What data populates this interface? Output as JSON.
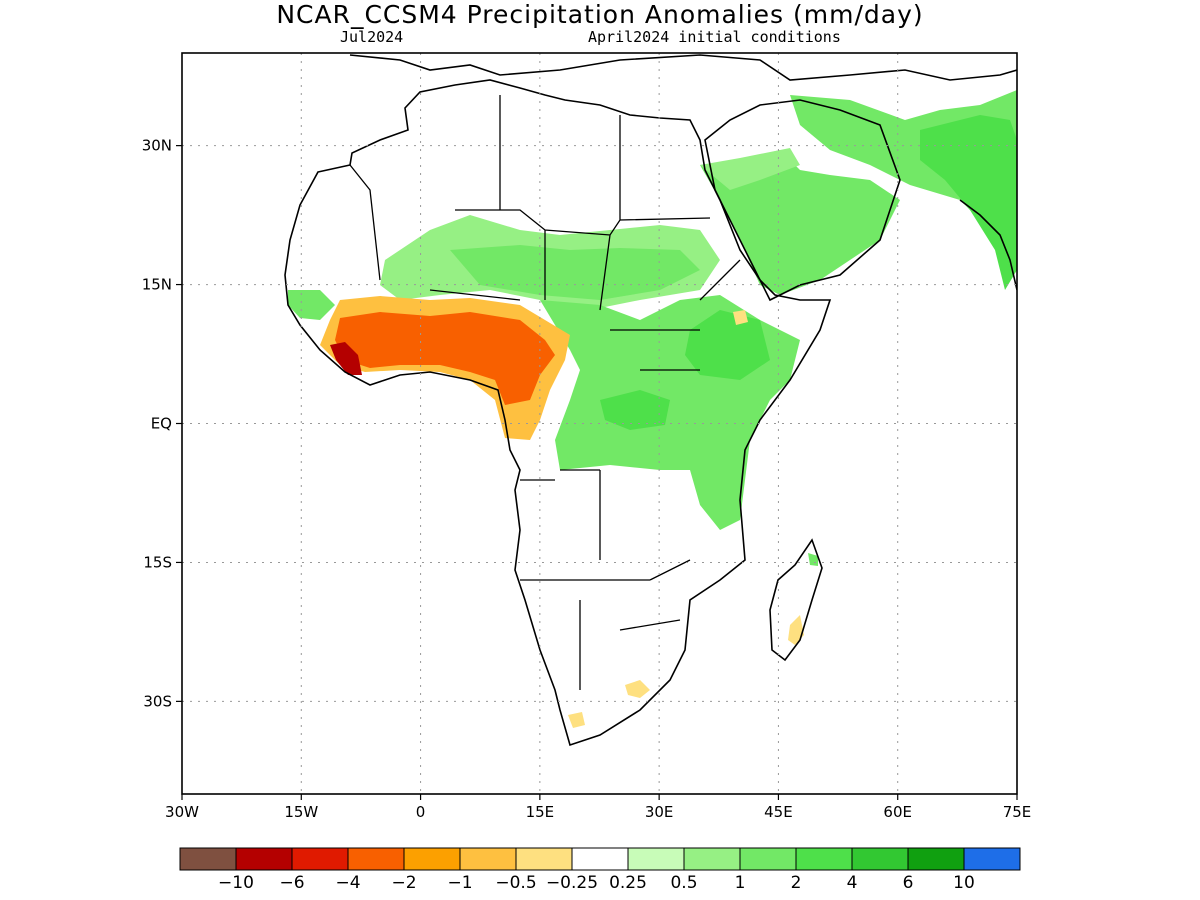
{
  "title": "NCAR_CCSM4 Precipitation Anomalies (mm/day)",
  "subtitle_left": "Jul2024",
  "subtitle_right": "April2024 initial conditions",
  "map": {
    "lon_range": [
      -30,
      75
    ],
    "lat_range": [
      -40,
      40
    ],
    "y_axis_labels": [
      {
        "lat": 30,
        "label": "30N"
      },
      {
        "lat": 15,
        "label": "15N"
      },
      {
        "lat": 0,
        "label": "EQ"
      },
      {
        "lat": -15,
        "label": "15S"
      },
      {
        "lat": -30,
        "label": "30S"
      }
    ],
    "x_axis_labels": [
      {
        "lon": -30,
        "label": "30W"
      },
      {
        "lon": -15,
        "label": "15W"
      },
      {
        "lon": 0,
        "label": "0"
      },
      {
        "lon": 15,
        "label": "15E"
      },
      {
        "lon": 30,
        "label": "30E"
      },
      {
        "lon": 45,
        "label": "45E"
      },
      {
        "lon": 60,
        "label": "60E"
      },
      {
        "lon": 75,
        "label": "75E"
      }
    ],
    "grid": "dotted",
    "land_outline_color": "#000000"
  },
  "legend": {
    "colors": [
      "#7f5040",
      "#b40000",
      "#e01a00",
      "#f86000",
      "#fca000",
      "#fec040",
      "#fee080",
      "#ffffff",
      "#c8fcb8",
      "#96f084",
      "#72e866",
      "#4ee04a",
      "#32c832",
      "#10a010",
      "#1e6ee8"
    ],
    "labels": [
      "−10",
      "−6",
      "−4",
      "−2",
      "−1",
      "−0.5",
      "−0.25",
      "0.25",
      "0.5",
      "1",
      "2",
      "4",
      "6",
      "10"
    ]
  }
}
